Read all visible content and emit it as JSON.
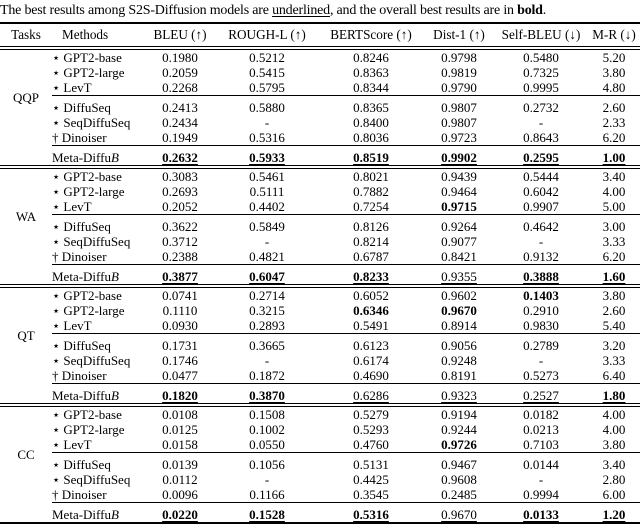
{
  "colors": {
    "text": "#000000",
    "background": "#ffffff",
    "rule": "#000000"
  },
  "caption": {
    "part1": "The best results among S2S-Diffusion models are ",
    "underlined_word": "underlined",
    "part2": ", and the overall best results are in ",
    "bold_word": "bold",
    "part3": "."
  },
  "table": {
    "header": [
      "Tasks",
      "Methods",
      "BLEU (↑)",
      "ROUGH-L (↑)",
      "BERTScore (↑)",
      "Dist-1 (↑)",
      "Self-BLEU (↓)",
      "M-R (↓)"
    ],
    "marker_legend": {
      "star": "⋆",
      "dagger": "†"
    },
    "sections": [
      {
        "task": "QQP",
        "groups": [
          {
            "rows": [
              {
                "marker": "⋆",
                "method": "GPT2-base",
                "method_italic": "",
                "values": [
                  "0.1980",
                  "0.5212",
                  "0.8246",
                  "0.9798",
                  "0.5480",
                  "5.20"
                ],
                "styles": [
                  "",
                  "",
                  "",
                  "",
                  "",
                  ""
                ]
              },
              {
                "marker": "⋆",
                "method": "GPT2-large",
                "method_italic": "",
                "values": [
                  "0.2059",
                  "0.5415",
                  "0.8363",
                  "0.9819",
                  "0.7325",
                  "3.80"
                ],
                "styles": [
                  "",
                  "",
                  "",
                  "",
                  "",
                  ""
                ]
              },
              {
                "marker": "⋆",
                "method": "LevT",
                "method_italic": "",
                "values": [
                  "0.2268",
                  "0.5795",
                  "0.8344",
                  "0.9790",
                  "0.9995",
                  "4.80"
                ],
                "styles": [
                  "",
                  "",
                  "",
                  "",
                  "",
                  ""
                ]
              }
            ]
          },
          {
            "rows": [
              {
                "marker": "⋆",
                "method": "DiffuSeq",
                "method_italic": "",
                "values": [
                  "0.2413",
                  "0.5880",
                  "0.8365",
                  "0.9807",
                  "0.2732",
                  "2.60"
                ],
                "styles": [
                  "",
                  "",
                  "",
                  "",
                  "",
                  ""
                ]
              },
              {
                "marker": "⋆",
                "method": "SeqDiffuSeq",
                "method_italic": "",
                "values": [
                  "0.2434",
                  "-",
                  "0.8400",
                  "0.9807",
                  "-",
                  "2.33"
                ],
                "styles": [
                  "",
                  "",
                  "",
                  "",
                  "",
                  ""
                ]
              },
              {
                "marker": "†",
                "method": "Dinoiser",
                "method_italic": "",
                "values": [
                  "0.1949",
                  "0.5316",
                  "0.8036",
                  "0.9723",
                  "0.8643",
                  "6.20"
                ],
                "styles": [
                  "",
                  "",
                  "",
                  "",
                  "",
                  ""
                ]
              }
            ]
          },
          {
            "rows": [
              {
                "marker": "",
                "method": "Meta-Diffu",
                "method_italic": "B",
                "values": [
                  "0.2632",
                  "0.5933",
                  "0.8519",
                  "0.9902",
                  "0.2595",
                  "1.00"
                ],
                "styles": [
                  "bu",
                  "bu",
                  "bu",
                  "bu",
                  "bu",
                  "bu"
                ]
              }
            ]
          }
        ]
      },
      {
        "task": "WA",
        "groups": [
          {
            "rows": [
              {
                "marker": "⋆",
                "method": "GPT2-base",
                "method_italic": "",
                "values": [
                  "0.3083",
                  "0.5461",
                  "0.8021",
                  "0.9439",
                  "0.5444",
                  "3.40"
                ],
                "styles": [
                  "",
                  "",
                  "",
                  "",
                  "",
                  ""
                ]
              },
              {
                "marker": "⋆",
                "method": "GPT2-large",
                "method_italic": "",
                "values": [
                  "0.2693",
                  "0.5111",
                  "0.7882",
                  "0.9464",
                  "0.6042",
                  "4.00"
                ],
                "styles": [
                  "",
                  "",
                  "",
                  "",
                  "",
                  ""
                ]
              },
              {
                "marker": "⋆",
                "method": "LevT",
                "method_italic": "",
                "values": [
                  "0.2052",
                  "0.4402",
                  "0.7254",
                  "0.9715",
                  "0.9907",
                  "5.00"
                ],
                "styles": [
                  "",
                  "",
                  "",
                  "b",
                  "",
                  ""
                ]
              }
            ]
          },
          {
            "rows": [
              {
                "marker": "⋆",
                "method": "DiffuSeq",
                "method_italic": "",
                "values": [
                  "0.3622",
                  "0.5849",
                  "0.8126",
                  "0.9264",
                  "0.4642",
                  "3.00"
                ],
                "styles": [
                  "",
                  "",
                  "",
                  "",
                  "",
                  ""
                ]
              },
              {
                "marker": "⋆",
                "method": "SeqDiffuSeq",
                "method_italic": "",
                "values": [
                  "0.3712",
                  "-",
                  "0.8214",
                  "0.9077",
                  "-",
                  "3.33"
                ],
                "styles": [
                  "",
                  "",
                  "",
                  "",
                  "",
                  ""
                ]
              },
              {
                "marker": "†",
                "method": "Dinoiser",
                "method_italic": "",
                "values": [
                  "0.2388",
                  "0.4821",
                  "0.6787",
                  "0.8421",
                  "0.9132",
                  "6.20"
                ],
                "styles": [
                  "",
                  "",
                  "",
                  "",
                  "",
                  ""
                ]
              }
            ]
          },
          {
            "rows": [
              {
                "marker": "",
                "method": "Meta-Diffu",
                "method_italic": "B",
                "values": [
                  "0.3877",
                  "0.6047",
                  "0.8233",
                  "0.9355",
                  "0.3888",
                  "1.60"
                ],
                "styles": [
                  "bu",
                  "bu",
                  "bu",
                  "u",
                  "bu",
                  "bu"
                ]
              }
            ]
          }
        ]
      },
      {
        "task": "QT",
        "groups": [
          {
            "rows": [
              {
                "marker": "⋆",
                "method": "GPT2-base",
                "method_italic": "",
                "values": [
                  "0.0741",
                  "0.2714",
                  "0.6052",
                  "0.9602",
                  "0.1403",
                  "3.80"
                ],
                "styles": [
                  "",
                  "",
                  "",
                  "",
                  "b",
                  ""
                ]
              },
              {
                "marker": "⋆",
                "method": "GPT2-large",
                "method_italic": "",
                "values": [
                  "0.1110",
                  "0.3215",
                  "0.6346",
                  "0.9670",
                  "0.2910",
                  "2.60"
                ],
                "styles": [
                  "",
                  "",
                  "b",
                  "b",
                  "",
                  ""
                ]
              },
              {
                "marker": "⋆",
                "method": "LevT",
                "method_italic": "",
                "values": [
                  "0.0930",
                  "0.2893",
                  "0.5491",
                  "0.8914",
                  "0.9830",
                  "5.40"
                ],
                "styles": [
                  "",
                  "",
                  "",
                  "",
                  "",
                  ""
                ]
              }
            ]
          },
          {
            "rows": [
              {
                "marker": "⋆",
                "method": "DiffuSeq",
                "method_italic": "",
                "values": [
                  "0.1731",
                  "0.3665",
                  "0.6123",
                  "0.9056",
                  "0.2789",
                  "3.20"
                ],
                "styles": [
                  "",
                  "",
                  "",
                  "",
                  "",
                  ""
                ]
              },
              {
                "marker": "⋆",
                "method": "SeqDiffuSeq",
                "method_italic": "",
                "values": [
                  "0.1746",
                  "-",
                  "0.6174",
                  "0.9248",
                  "-",
                  "3.33"
                ],
                "styles": [
                  "",
                  "",
                  "",
                  "",
                  "",
                  ""
                ]
              },
              {
                "marker": "†",
                "method": "Dinoiser",
                "method_italic": "",
                "values": [
                  "0.0477",
                  "0.1872",
                  "0.4690",
                  "0.8191",
                  "0.5273",
                  "6.40"
                ],
                "styles": [
                  "",
                  "",
                  "",
                  "",
                  "",
                  ""
                ]
              }
            ]
          },
          {
            "rows": [
              {
                "marker": "",
                "method": "Meta-Diffu",
                "method_italic": "B",
                "values": [
                  "0.1820",
                  "0.3870",
                  "0.6286",
                  "0.9323",
                  "0.2527",
                  "1.80"
                ],
                "styles": [
                  "bu",
                  "bu",
                  "u",
                  "u",
                  "u",
                  "bu"
                ]
              }
            ]
          }
        ]
      },
      {
        "task": "CC",
        "groups": [
          {
            "rows": [
              {
                "marker": "⋆",
                "method": "GPT2-base",
                "method_italic": "",
                "values": [
                  "0.0108",
                  "0.1508",
                  "0.5279",
                  "0.9194",
                  "0.0182",
                  "4.00"
                ],
                "styles": [
                  "",
                  "",
                  "",
                  "",
                  "",
                  ""
                ]
              },
              {
                "marker": "⋆",
                "method": "GPT2-large",
                "method_italic": "",
                "values": [
                  "0.0125",
                  "0.1002",
                  "0.5293",
                  "0.9244",
                  "0.0213",
                  "4.00"
                ],
                "styles": [
                  "",
                  "",
                  "",
                  "",
                  "",
                  ""
                ]
              },
              {
                "marker": "⋆",
                "method": "LevT",
                "method_italic": "",
                "values": [
                  "0.0158",
                  "0.0550",
                  "0.4760",
                  "0.9726",
                  "0.7103",
                  "3.80"
                ],
                "styles": [
                  "",
                  "",
                  "",
                  "b",
                  "",
                  ""
                ]
              }
            ]
          },
          {
            "rows": [
              {
                "marker": "⋆",
                "method": "DiffuSeq",
                "method_italic": "",
                "values": [
                  "0.0139",
                  "0.1056",
                  "0.5131",
                  "0.9467",
                  "0.0144",
                  "3.40"
                ],
                "styles": [
                  "",
                  "",
                  "",
                  "",
                  "",
                  ""
                ]
              },
              {
                "marker": "⋆",
                "method": "SeqDiffuSeq",
                "method_italic": "",
                "values": [
                  "0.0112",
                  "-",
                  "0.4425",
                  "0.9608",
                  "-",
                  "2.80"
                ],
                "styles": [
                  "",
                  "",
                  "",
                  "",
                  "",
                  ""
                ]
              },
              {
                "marker": "†",
                "method": "Dinoiser",
                "method_italic": "",
                "values": [
                  "0.0096",
                  "0.1166",
                  "0.3545",
                  "0.2485",
                  "0.9994",
                  "6.00"
                ],
                "styles": [
                  "",
                  "",
                  "",
                  "",
                  "",
                  ""
                ]
              }
            ]
          },
          {
            "rows": [
              {
                "marker": "",
                "method": "Meta-Diffu",
                "method_italic": "B",
                "values": [
                  "0.0220",
                  "0.1528",
                  "0.5316",
                  "0.9670",
                  "0.0133",
                  "1.20"
                ],
                "styles": [
                  "bu",
                  "bu",
                  "bu",
                  "u",
                  "bu",
                  "bu"
                ]
              }
            ]
          }
        ]
      }
    ]
  }
}
